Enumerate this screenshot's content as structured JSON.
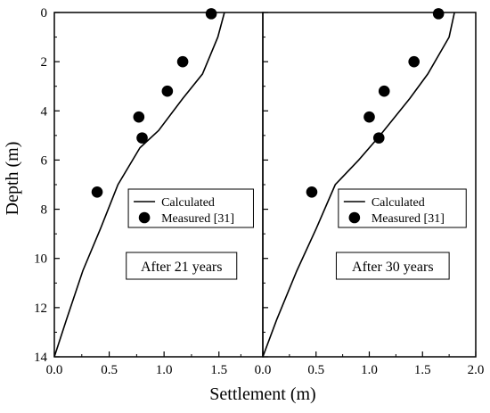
{
  "chart_data": {
    "type": "scatter",
    "xlabel": "Settlement (m)",
    "ylabel": "Depth (m)",
    "y_axis": {
      "range": [
        0,
        14
      ],
      "reversed": true,
      "ticks": [
        0,
        2,
        4,
        6,
        8,
        10,
        12,
        14
      ],
      "tick_labels": [
        "0",
        "2",
        "4",
        "6",
        "8",
        "10",
        "12",
        "14"
      ]
    },
    "x_axis_ticks": [
      "0.0",
      "0.5",
      "1.0",
      "1.5",
      "0.0",
      "0.5",
      "1.0",
      "1.5",
      "2.0"
    ],
    "grid": false,
    "panels": [
      {
        "annotation": "After 21 years",
        "xlim": [
          0,
          1.9
        ],
        "xticks": [
          0,
          0.5,
          1.0,
          1.5
        ],
        "legend": {
          "position": "center-right",
          "entries": [
            "Calculated",
            "Measured [31]"
          ]
        },
        "series": [
          {
            "name": "Calculated",
            "type": "line",
            "color": "#000000",
            "points": [
              [
                1.55,
                0
              ],
              [
                1.49,
                1.0
              ],
              [
                1.35,
                2.5
              ],
              [
                1.17,
                3.5
              ],
              [
                0.95,
                4.8
              ],
              [
                0.78,
                5.5
              ],
              [
                0.58,
                7.0
              ],
              [
                0.42,
                8.8
              ],
              [
                0.26,
                10.5
              ],
              [
                0.11,
                12.5
              ],
              [
                0.0,
                14.0
              ]
            ]
          },
          {
            "name": "Measured [31]",
            "type": "scatter",
            "color": "#000000",
            "points": [
              [
                1.43,
                0.05
              ],
              [
                1.17,
                2.0
              ],
              [
                1.03,
                3.2
              ],
              [
                0.77,
                4.25
              ],
              [
                0.8,
                5.1
              ],
              [
                0.39,
                7.3
              ]
            ]
          }
        ]
      },
      {
        "annotation": "After 30 years",
        "xlim": [
          0,
          2.0
        ],
        "xticks": [
          0,
          0.5,
          1.0,
          1.5,
          2.0
        ],
        "legend": {
          "position": "center-right",
          "entries": [
            "Calculated",
            "Measured [31]"
          ]
        },
        "series": [
          {
            "name": "Calculated",
            "type": "line",
            "color": "#000000",
            "points": [
              [
                1.8,
                0
              ],
              [
                1.75,
                1.0
              ],
              [
                1.55,
                2.5
              ],
              [
                1.38,
                3.5
              ],
              [
                1.1,
                5.0
              ],
              [
                0.9,
                6.0
              ],
              [
                0.68,
                7.0
              ],
              [
                0.5,
                8.8
              ],
              [
                0.32,
                10.5
              ],
              [
                0.13,
                12.5
              ],
              [
                0.0,
                14.0
              ]
            ]
          },
          {
            "name": "Measured [31]",
            "type": "scatter",
            "color": "#000000",
            "points": [
              [
                1.65,
                0.05
              ],
              [
                1.42,
                2.0
              ],
              [
                1.14,
                3.2
              ],
              [
                1.0,
                4.25
              ],
              [
                1.09,
                5.1
              ],
              [
                0.46,
                7.3
              ]
            ]
          }
        ]
      }
    ]
  }
}
